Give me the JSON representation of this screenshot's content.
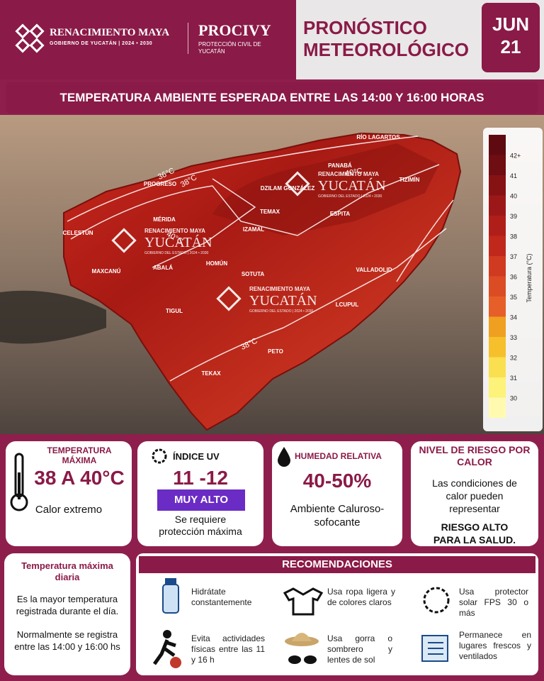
{
  "header": {
    "brand": "RENACIMIENTO MAYA",
    "brand_sub": "GOBIERNO DE YUCATÁN",
    "brand_years": "2024 • 2030",
    "agency": "PROCIVY",
    "agency_sub": "PROTECCIÓN CIVIL DE YUCATÁN",
    "title_line1": "PRONÓSTICO",
    "title_line2": "METEOROLÓGICO",
    "month": "JUN",
    "day": "21"
  },
  "banner": "TEMPERATURA AMBIENTE ESPERADA ENTRE LAS 14:00 Y 16:00 HORAS",
  "map": {
    "places": [
      "RÍO LAGARTOS",
      "PANABÁ",
      "DZILAM GONZÁLEZ",
      "TIZIMÍN",
      "PROGRESO",
      "TEMAX",
      "ESPITA",
      "MÉRIDA",
      "CELESTÚN",
      "IZAMAL",
      "MAXCANÚ",
      "ABALÁ",
      "HOMÚN",
      "SOTUTA",
      "VALLADOLID",
      "TIGUL",
      "LCUPUL",
      "PETO",
      "TEKAX"
    ],
    "isotherms": [
      "36°C",
      "38°C",
      "40°C",
      "40°C",
      "38°C"
    ],
    "watermark": {
      "line1": "RENACIMIENTO MAYA",
      "line2": "YUCATÁN",
      "line3": "GOBIERNO DEL ESTADO | 2024 • 2030"
    }
  },
  "colorbar": {
    "title": "Temperatura (°C)",
    "ticks": [
      "42+",
      "41",
      "40",
      "39",
      "38",
      "37",
      "36",
      "35",
      "34",
      "33",
      "32",
      "31",
      "30"
    ]
  },
  "cards": [
    {
      "title": "TEMPERATURA MÁXIMA",
      "value": "38 A 40°C",
      "note": "Calor extremo"
    },
    {
      "title": "ÍNDICE UV",
      "value": "11 -12",
      "badge": "MUY ALTO",
      "note": "Se requiere protección máxima"
    },
    {
      "title": "HUMEDAD RELATIVA",
      "value": "40-50%",
      "note": "Ambiente Caluroso-sofocante"
    },
    {
      "title": "NIVEL DE RIESGO POR CALOR",
      "text": "Las condiciones de calor pueden representar",
      "strong": "RIESGO ALTO PARA LA SALUD."
    }
  ],
  "definition": {
    "title": "Temperatura máxima diaria",
    "p1": "Es la mayor temperatura registrada durante el día.",
    "p2": "Normalmente se registra entre las 14:00 y 16:00 hs"
  },
  "recommendations": {
    "title": "RECOMENDACIONES",
    "items": [
      "Hidrátate constantemente",
      "Usa ropa ligera y de colores claros",
      "Usa protector solar FPS 30 o más",
      "Evita actividades físicas entre las 11 y 16 h",
      "Usa gorra o sombrero y lentes de sol",
      "Permanece en lugares frescos y ventilados"
    ]
  }
}
